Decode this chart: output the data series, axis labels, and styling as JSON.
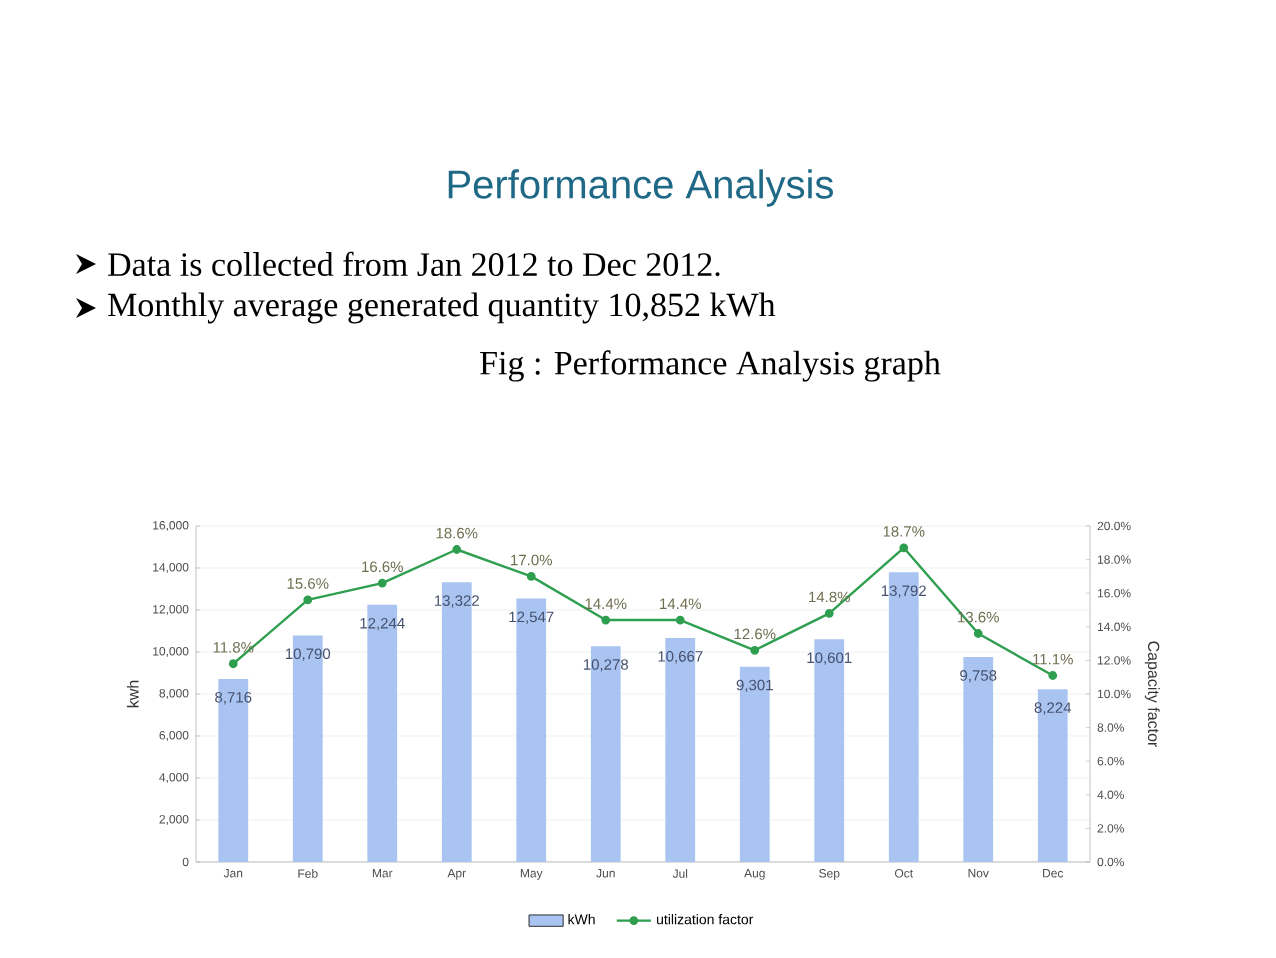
{
  "chart_data": {
    "type": "bar",
    "title": "Performance Analysis",
    "subtitle": "Fig : Performance Analysis graph",
    "annotations": [
      "Data is collected from Jan 2012 to Dec 2012.",
      "Monthly average generated quantity 10,852 kWh"
    ],
    "categories": [
      "Jan",
      "Feb",
      "Mar",
      "Apr",
      "May",
      "Jun",
      "Jul",
      "Aug",
      "Sep",
      "Oct",
      "Nov",
      "Dec"
    ],
    "series": [
      {
        "name": "kWh",
        "color": "#a9c4f0",
        "values": [
          8716,
          10790,
          12244,
          13322,
          12547,
          10278,
          10667,
          9301,
          10601,
          13792,
          9758,
          8224
        ],
        "value_labels": [
          "8,716",
          "10,790",
          "12,244",
          "13,322",
          "12,547",
          "10,278",
          "10,667",
          "9,301",
          "10,601",
          "13,792",
          "9,758",
          "8,224"
        ]
      },
      {
        "name": "utilization factor",
        "type": "line",
        "axis": "y2",
        "color": "#2e9e4f",
        "marker": "circle",
        "values": [
          11.8,
          15.6,
          16.6,
          18.6,
          17.0,
          14.4,
          14.4,
          12.6,
          14.8,
          18.7,
          13.6,
          11.1
        ],
        "value_labels": [
          "11.8%",
          "15.6%",
          "16.6%",
          "18.6%",
          "17.0%",
          "14.4%",
          "14.4%",
          "12.6%",
          "14.8%",
          "18.7%",
          "13.6%",
          "11.1%"
        ]
      }
    ],
    "ylabel": "kwh",
    "y2label": "Capacity factor",
    "ylim": [
      0,
      16000
    ],
    "yticks": [
      {
        "value": 0,
        "label": "0"
      },
      {
        "value": 2000,
        "label": "2,000"
      },
      {
        "value": 4000,
        "label": "4,000"
      },
      {
        "value": 6000,
        "label": "6,000"
      },
      {
        "value": 8000,
        "label": "8,000"
      },
      {
        "value": 10000,
        "label": "10,000"
      },
      {
        "value": 12000,
        "label": "12,000"
      },
      {
        "value": 14000,
        "label": "14,000"
      },
      {
        "value": 16000,
        "label": "16,000"
      }
    ],
    "y2lim": [
      0,
      20
    ],
    "y2ticks": [
      {
        "value": 0,
        "label": "0.0%"
      },
      {
        "value": 2,
        "label": "2.0%"
      },
      {
        "value": 4,
        "label": "4.0%"
      },
      {
        "value": 6,
        "label": "6.0%"
      },
      {
        "value": 8,
        "label": "8.0%"
      },
      {
        "value": 10,
        "label": "10.0%"
      },
      {
        "value": 12,
        "label": "12.0%"
      },
      {
        "value": 14,
        "label": "14.0%"
      },
      {
        "value": 16,
        "label": "16.0%"
      },
      {
        "value": 18,
        "label": "18.0%"
      },
      {
        "value": 20,
        "label": "20.0%"
      }
    ],
    "grid": "y",
    "legend": "bottom"
  }
}
